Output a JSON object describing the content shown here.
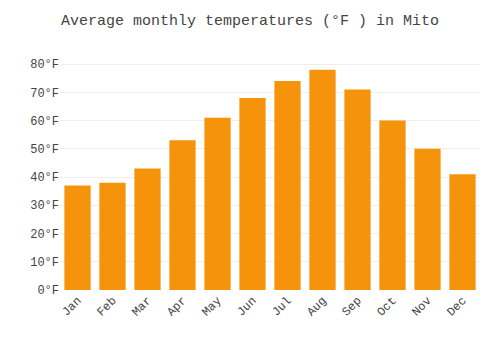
{
  "chart_data": {
    "type": "bar",
    "title": "Average monthly temperatures (°F ) in Mito",
    "categories": [
      "Jan",
      "Feb",
      "Mar",
      "Apr",
      "May",
      "Jun",
      "Jul",
      "Aug",
      "Sep",
      "Oct",
      "Nov",
      "Dec"
    ],
    "values": [
      37,
      38,
      43,
      53,
      61,
      68,
      74,
      78,
      71,
      60,
      50,
      41
    ],
    "color": "#F5930A",
    "ylim": [
      0,
      85
    ],
    "yticks": [
      {
        "value": 0,
        "label": "0°F"
      },
      {
        "value": 10,
        "label": "10°F"
      },
      {
        "value": 20,
        "label": "20°F"
      },
      {
        "value": 30,
        "label": "30°F"
      },
      {
        "value": 40,
        "label": "40°F"
      },
      {
        "value": 50,
        "label": "50°F"
      },
      {
        "value": 60,
        "label": "60°F"
      },
      {
        "value": 70,
        "label": "70°F"
      },
      {
        "value": 80,
        "label": "80°F"
      }
    ],
    "grid": true
  }
}
